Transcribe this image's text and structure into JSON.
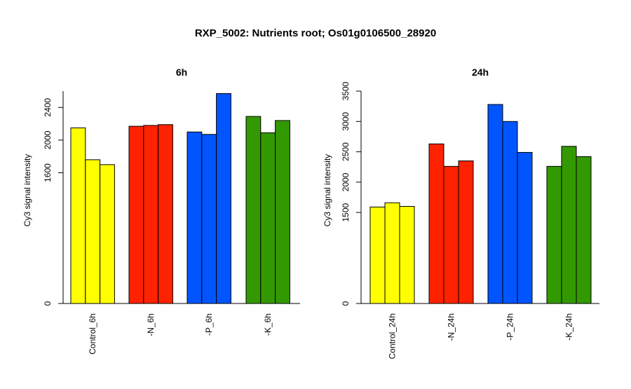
{
  "figure": {
    "title": "RXP_5002: Nutrients root; Os01g0106500_28920"
  },
  "chart_data": [
    {
      "type": "bar",
      "title": "6h",
      "ylabel": "Cy3 signal intensity",
      "xlabel": "",
      "ylim": [
        0,
        2600
      ],
      "yticks": [
        0,
        1600,
        2000,
        2400
      ],
      "categories": [
        "Control_6h",
        "-N_6h",
        "-P_6h",
        "-K_6h"
      ],
      "colors": [
        "#ffff00",
        "#ff2200",
        "#0055ff",
        "#339900"
      ],
      "replicates": [
        [
          2150,
          1760,
          1700
        ],
        [
          2170,
          2180,
          2190
        ],
        [
          2100,
          2070,
          2570
        ],
        [
          2290,
          2090,
          2240
        ]
      ],
      "grid": false,
      "legend": "none"
    },
    {
      "type": "bar",
      "title": "24h",
      "ylabel": "Cy3 signal intensity",
      "xlabel": "",
      "ylim": [
        0,
        3500
      ],
      "yticks": [
        0,
        1500,
        2000,
        2500,
        3000,
        3500
      ],
      "categories": [
        "Control_24h",
        "-N_24h",
        "-P_24h",
        "-K_24h"
      ],
      "colors": [
        "#ffff00",
        "#ff2200",
        "#0055ff",
        "#339900"
      ],
      "replicates": [
        [
          1590,
          1660,
          1600
        ],
        [
          2630,
          2260,
          2350
        ],
        [
          3280,
          3000,
          2490
        ],
        [
          2260,
          2590,
          2420
        ]
      ],
      "grid": false,
      "legend": "none"
    }
  ]
}
